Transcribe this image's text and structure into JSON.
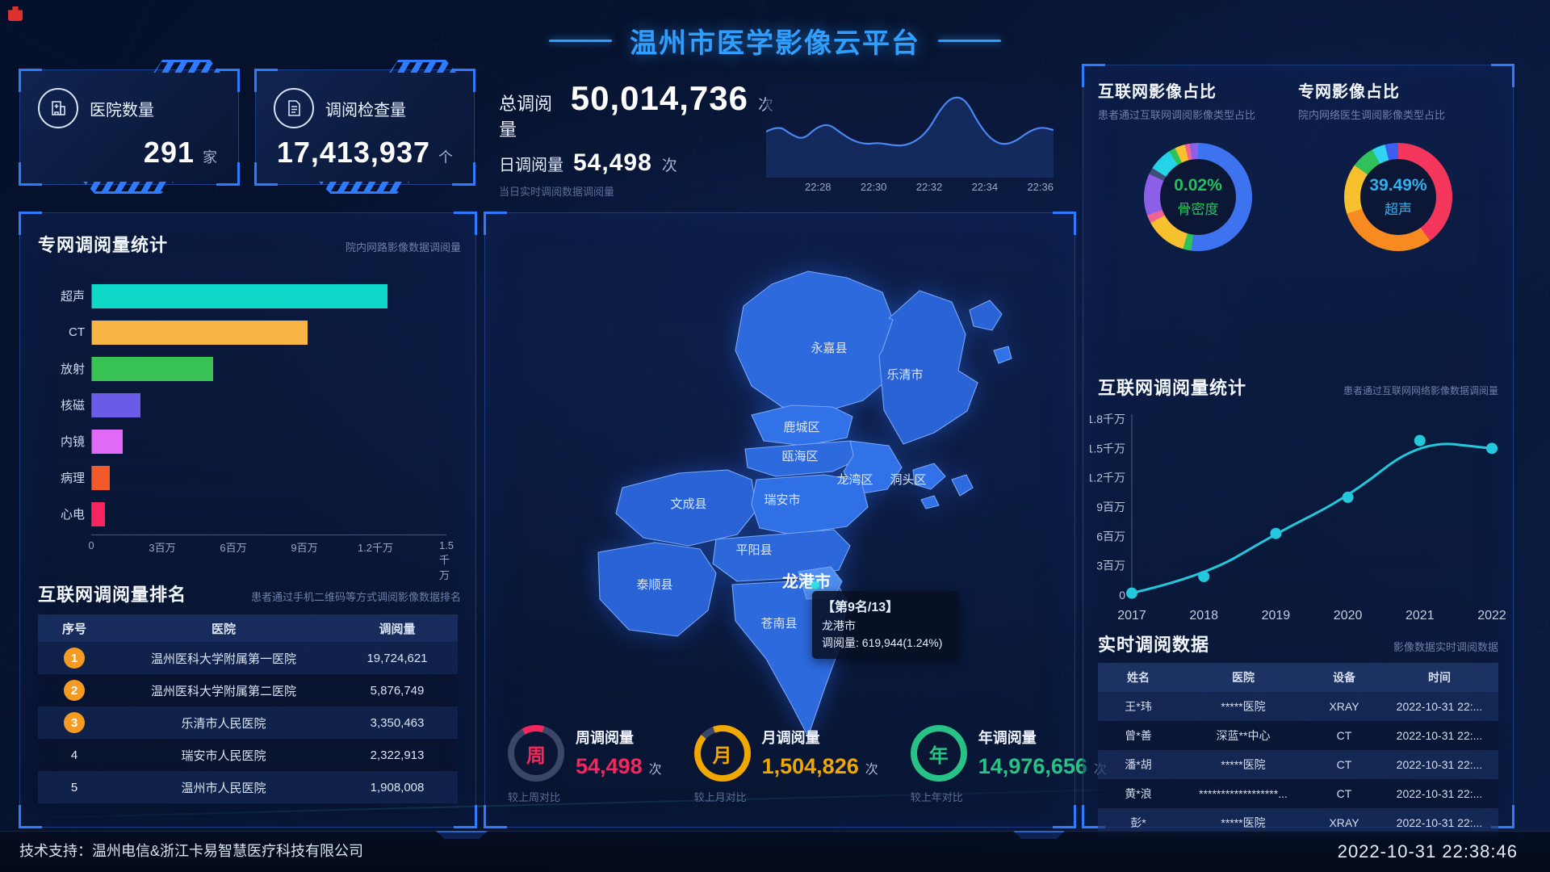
{
  "header": {
    "title": "温州市医学影像云平台"
  },
  "kpi_cards": [
    {
      "icon": "hospital-icon",
      "label": "医院数量",
      "value": "291",
      "unit": "家"
    },
    {
      "icon": "document-icon",
      "label": "调阅检查量",
      "value": "17,413,937",
      "unit": "个"
    }
  ],
  "totals": {
    "total_label": "总调阅量",
    "total_value": "50,014,736",
    "total_unit": "次",
    "daily_label": "日调阅量",
    "daily_value": "54,498",
    "daily_unit": "次",
    "note": "当日实时调阅数据调阅量"
  },
  "ranking": {
    "title": "互联网调阅量排名",
    "subtitle": "患者通过手机二维码等方式调阅影像数据排名",
    "columns": [
      "序号",
      "医院",
      "调阅量"
    ],
    "rows": [
      {
        "rank": "1",
        "hospital": "温州医科大学附属第一医院",
        "count": "19,724,621"
      },
      {
        "rank": "2",
        "hospital": "温州医科大学附属第二医院",
        "count": "5,876,749"
      },
      {
        "rank": "3",
        "hospital": "乐清市人民医院",
        "count": "3,350,463"
      },
      {
        "rank": "4",
        "hospital": "瑞安市人民医院",
        "count": "2,322,913"
      },
      {
        "rank": "5",
        "hospital": "温州市人民医院",
        "count": "1,908,008"
      }
    ]
  },
  "map": {
    "districts": [
      "永嘉县",
      "乐清市",
      "鹿城区",
      "瓯海区",
      "龙湾区",
      "洞头区",
      "文成县",
      "瑞安市",
      "平阳县",
      "泰顺县",
      "苍南县",
      "龙港市"
    ],
    "highlight": "龙港市",
    "tooltip": {
      "line1": "【第9名/13】",
      "line2": "龙港市",
      "line3": "调阅量: 619,944(1.24%)"
    }
  },
  "gauges": [
    {
      "char": "周",
      "label": "周调阅量",
      "value": "54,498",
      "unit": "次",
      "compare": "较上周对比",
      "color": "#f5265e",
      "percent": 13
    },
    {
      "char": "月",
      "label": "月调阅量",
      "value": "1,504,826",
      "unit": "次",
      "compare": "较上月对比",
      "color": "#f0a800",
      "percent": 92
    },
    {
      "char": "年",
      "label": "年调阅量",
      "value": "14,976,656",
      "unit": "次",
      "compare": "较上年对比",
      "color": "#27c286",
      "percent": 100
    }
  ],
  "realtime": {
    "title": "实时调阅数据",
    "subtitle": "影像数据实时调阅数据",
    "columns": [
      "姓名",
      "医院",
      "设备",
      "时间"
    ],
    "rows": [
      {
        "name": "王*玮",
        "hospital": "*****医院",
        "device": "XRAY",
        "time": "2022-10-31 22:..."
      },
      {
        "name": "曾*善",
        "hospital": "深蓝**中心",
        "device": "CT",
        "time": "2022-10-31 22:..."
      },
      {
        "name": "潘*胡",
        "hospital": "*****医院",
        "device": "CT",
        "time": "2022-10-31 22:..."
      },
      {
        "name": "黄*浪",
        "hospital": "******************...",
        "device": "CT",
        "time": "2022-10-31 22:..."
      },
      {
        "name": "彭*",
        "hospital": "*****医院",
        "device": "XRAY",
        "time": "2022-10-31 22:..."
      }
    ]
  },
  "footer": {
    "support": "技术支持：温州电信&浙江卡易智慧医疗科技有限公司",
    "timestamp": "2022-10-31 22:38:46"
  },
  "chart_data": [
    {
      "id": "private_net_bars",
      "type": "bar",
      "orientation": "horizontal",
      "title": "专网调阅量统计",
      "subtitle": "院内网路影像数据调阅量",
      "categories": [
        "超声",
        "CT",
        "放射",
        "核磁",
        "内镜",
        "病理",
        "心电"
      ],
      "values": [
        12480000,
        9100000,
        5100000,
        2050000,
        1300000,
        760000,
        560000
      ],
      "colors": [
        "#0fd8c9",
        "#f7b545",
        "#38c254",
        "#6b5ce7",
        "#e06af5",
        "#f25a2b",
        "#f5265e"
      ],
      "xlim": [
        0,
        15000000
      ],
      "x_ticks": [
        "0",
        "3百万",
        "6百万",
        "9百万",
        "1.2千万",
        "1.5千万"
      ]
    },
    {
      "id": "today_sparkline",
      "type": "line",
      "x_ticks": [
        "22:28",
        "22:30",
        "22:32",
        "22:34",
        "22:36"
      ],
      "values": [
        50,
        58,
        46,
        40,
        55,
        60,
        48,
        38,
        34,
        36,
        33,
        32,
        38,
        52,
        80,
        95,
        90,
        60,
        40,
        33,
        38,
        50,
        56,
        52
      ],
      "ylim": [
        0,
        100
      ],
      "color": "#4b86f2"
    },
    {
      "id": "internet_share_donut",
      "type": "pie",
      "title": "互联网影像占比",
      "subtitle": "患者通过互联网调阅影像类型占比",
      "center_value": "0.02%",
      "center_label": "骨密度",
      "center_color": "#21c25e",
      "slices": [
        {
          "color": "#3e73f0",
          "pct": 52
        },
        {
          "color": "#2fc25b",
          "pct": 2.5
        },
        {
          "color": "#f7c02e",
          "pct": 12.5
        },
        {
          "color": "#f06292",
          "pct": 2.5
        },
        {
          "color": "#8d5fe8",
          "pct": 12.5
        },
        {
          "color": "#3c4f78",
          "pct": 2
        },
        {
          "color": "#24d3e8",
          "pct": 7
        },
        {
          "color": "#2fc25b",
          "pct": 2
        },
        {
          "color": "#f7c02e",
          "pct": 3
        },
        {
          "color": "#f06292",
          "pct": 1.5
        },
        {
          "color": "#8d5fe8",
          "pct": 2.5
        }
      ]
    },
    {
      "id": "private_share_donut",
      "type": "pie",
      "title": "专网影像占比",
      "subtitle": "院内网络医生调阅影像类型占比",
      "center_value": "39.49%",
      "center_label": "超声",
      "center_color": "#35aef0",
      "slices": [
        {
          "color": "#f5365c",
          "pct": 40
        },
        {
          "color": "#f78a20",
          "pct": 30
        },
        {
          "color": "#f7c02e",
          "pct": 15
        },
        {
          "color": "#2fc25b",
          "pct": 7
        },
        {
          "color": "#32d3f0",
          "pct": 4
        },
        {
          "color": "#3e5ef0",
          "pct": 4
        }
      ]
    },
    {
      "id": "internet_yearly_line",
      "type": "line",
      "title": "互联网调阅量统计",
      "subtitle": "患者通过互联网网络影像数据调阅量",
      "x": [
        "2017",
        "2018",
        "2019",
        "2020",
        "2021",
        "2022"
      ],
      "values": [
        200000,
        1900000,
        6300000,
        10000000,
        15800000,
        15000000
      ],
      "ylim": [
        0,
        18000000
      ],
      "y_ticks": [
        "0",
        "3百万",
        "6百万",
        "9百万",
        "1.2千万",
        "1.5千万",
        "1.8千万"
      ],
      "color": "#23c8dc"
    }
  ]
}
